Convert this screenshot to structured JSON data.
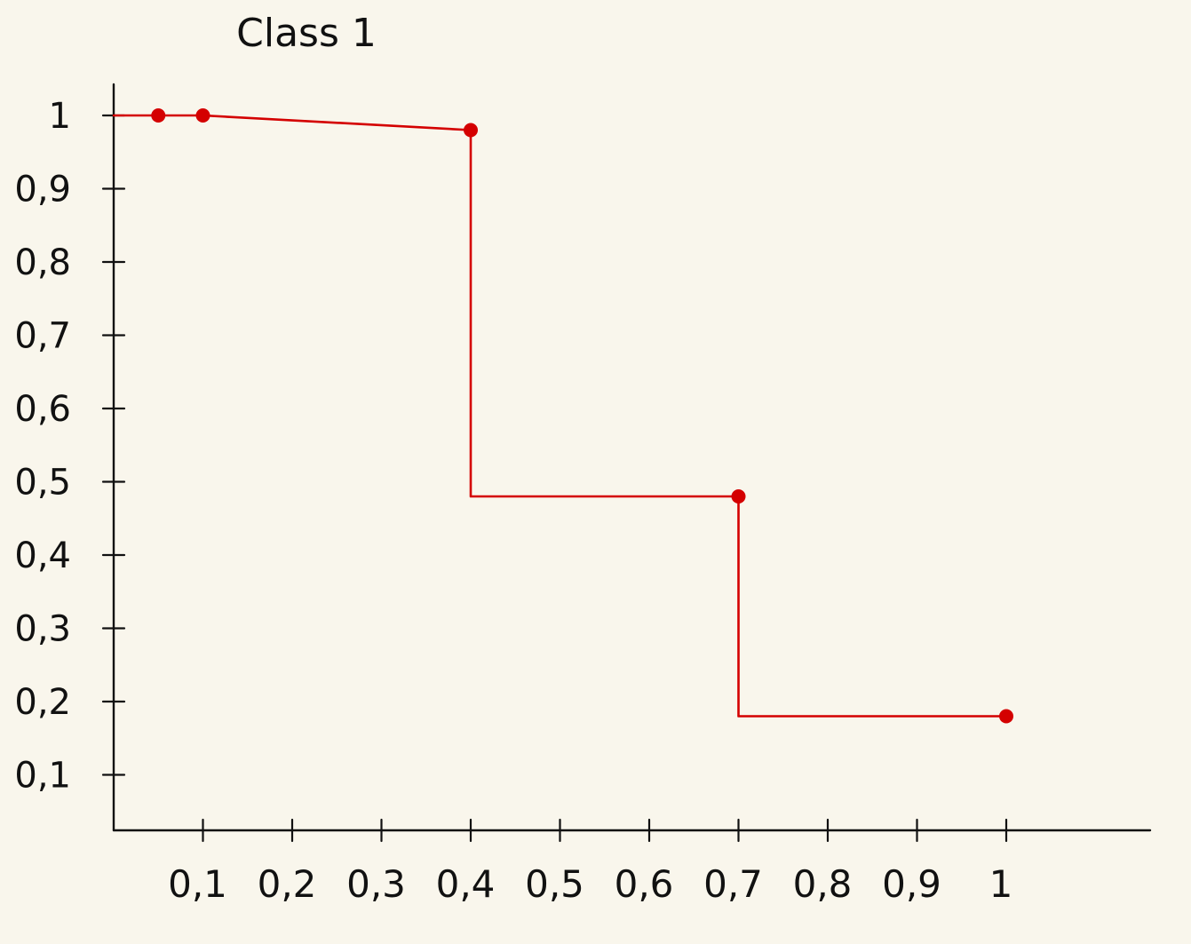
{
  "chart_data": {
    "type": "line",
    "title": "Class 1",
    "xlabel": "",
    "ylabel": "",
    "xlim": [
      0,
      1
    ],
    "ylim": [
      0,
      1
    ],
    "x_ticks": [
      "0,1",
      "0,2",
      "0,3",
      "0,4",
      "0,5",
      "0,6",
      "0,7",
      "0,8",
      "0,9",
      "1"
    ],
    "y_ticks": [
      "0,1",
      "0,2",
      "0,3",
      "0,4",
      "0,5",
      "0,6",
      "0,7",
      "0,8",
      "0,9",
      "1"
    ],
    "grid": false,
    "series": [
      {
        "color": "#d40000",
        "step": true,
        "x": [
          0.0,
          0.05,
          0.1,
          0.4,
          0.4,
          0.7,
          0.7,
          1.0
        ],
        "y": [
          1.0,
          1.0,
          1.0,
          0.98,
          0.48,
          0.48,
          0.18,
          0.18
        ]
      }
    ],
    "points": [
      {
        "x": 0.05,
        "y": 1.0
      },
      {
        "x": 0.1,
        "y": 1.0
      },
      {
        "x": 0.4,
        "y": 0.98
      },
      {
        "x": 0.7,
        "y": 0.48
      },
      {
        "x": 1.0,
        "y": 0.18
      }
    ]
  },
  "colors": {
    "axis": "#111111",
    "line": "#d40000",
    "background": "#f9f6ec"
  }
}
